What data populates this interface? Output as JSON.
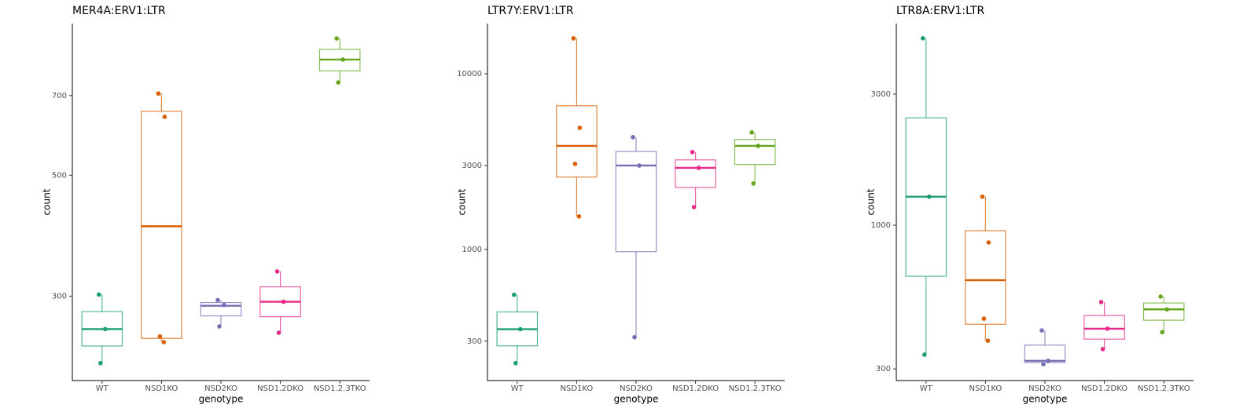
{
  "chart_data": [
    {
      "type": "box",
      "title": "MER4A:ERV1:LTR",
      "x_label": "genotype",
      "y_label": "count",
      "log_y": true,
      "categories": [
        "WT",
        "NSD1KO",
        "NSD2KO",
        "NSD1.2DKO",
        "NSD1.2.3TKO"
      ],
      "colors": [
        "#1b9e77",
        "#d95f02",
        "#7570b3",
        "#e7298a",
        "#66a61e"
      ],
      "ylim": [
        210,
        949
      ],
      "yticks": [
        300,
        500,
        700
      ],
      "boxes": [
        {
          "min": 226,
          "q1": 243,
          "median": 261,
          "q3": 281,
          "max": 302,
          "points": [
            302,
            261,
            226
          ]
        },
        {
          "min": 247,
          "q1": 251,
          "median": 403,
          "q3": 655,
          "max": 706,
          "points": [
            706,
            640,
            253,
            247
          ]
        },
        {
          "min": 264,
          "q1": 276,
          "median": 288,
          "q3": 292,
          "max": 295,
          "points": [
            295,
            289,
            264
          ]
        },
        {
          "min": 257,
          "q1": 275,
          "median": 293,
          "q3": 312,
          "max": 333,
          "points": [
            333,
            293,
            257
          ]
        },
        {
          "min": 740,
          "q1": 777,
          "median": 815,
          "q3": 851,
          "max": 891,
          "points": [
            891,
            815,
            740
          ]
        }
      ]
    },
    {
      "type": "box",
      "title": "LTR7Y:ERV1:LTR",
      "x_label": "genotype",
      "y_label": "count",
      "log_y": true,
      "categories": [
        "WT",
        "NSD1KO",
        "NSD2KO",
        "NSD1.2DKO",
        "NSD1.2.3TKO"
      ],
      "colors": [
        "#1b9e77",
        "#d95f02",
        "#7570b3",
        "#e7298a",
        "#66a61e"
      ],
      "ylim": [
        179,
        19300
      ],
      "yticks": [
        300,
        1000,
        3000,
        10000
      ],
      "boxes": [
        {
          "min": 225,
          "q1": 282,
          "median": 351,
          "q3": 440,
          "max": 551,
          "points": [
            551,
            351,
            225
          ]
        },
        {
          "min": 1540,
          "q1": 2580,
          "median": 3880,
          "q3": 6570,
          "max": 15900,
          "points": [
            15900,
            4920,
            3070,
            1540
          ]
        },
        {
          "min": 316,
          "q1": 970,
          "median": 3000,
          "q3": 3610,
          "max": 4350,
          "points": [
            4350,
            3000,
            316
          ]
        },
        {
          "min": 1740,
          "q1": 2250,
          "median": 2910,
          "q3": 3230,
          "max": 3580,
          "points": [
            3580,
            2910,
            1740
          ]
        },
        {
          "min": 2370,
          "q1": 3040,
          "median": 3880,
          "q3": 4220,
          "max": 4630,
          "points": [
            4630,
            3880,
            2370
          ]
        }
      ]
    },
    {
      "type": "box",
      "title": "LTR8A:ERV1:LTR",
      "x_label": "genotype",
      "y_label": "count",
      "log_y": true,
      "categories": [
        "WT",
        "NSD1KO",
        "NSD2KO",
        "NSD1.2DKO",
        "NSD1.2.3TKO"
      ],
      "colors": [
        "#1b9e77",
        "#d95f02",
        "#7570b3",
        "#e7298a",
        "#66a61e"
      ],
      "ylim": [
        272,
        5420
      ],
      "yticks": [
        300,
        1000,
        3000
      ],
      "boxes": [
        {
          "min": 338,
          "q1": 652,
          "median": 1270,
          "q3": 2460,
          "max": 4790,
          "points": [
            4790,
            1270,
            338
          ]
        },
        {
          "min": 380,
          "q1": 436,
          "median": 631,
          "q3": 955,
          "max": 1270,
          "points": [
            1270,
            865,
            457,
            380
          ]
        },
        {
          "min": 312,
          "q1": 316,
          "median": 321,
          "q3": 366,
          "max": 414,
          "points": [
            414,
            321,
            312
          ]
        },
        {
          "min": 354,
          "q1": 385,
          "median": 420,
          "q3": 469,
          "max": 525,
          "points": [
            525,
            420,
            354
          ]
        },
        {
          "min": 408,
          "q1": 451,
          "median": 494,
          "q3": 521,
          "max": 550,
          "points": [
            550,
            494,
            408
          ]
        }
      ]
    }
  ]
}
